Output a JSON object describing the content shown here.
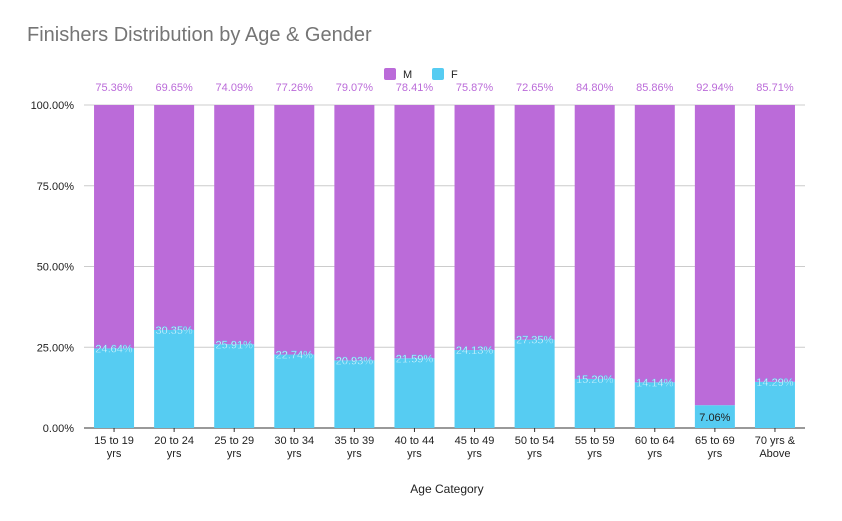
{
  "chart_data": {
    "type": "bar",
    "stacked": true,
    "title": "Finishers Distribution by Age & Gender",
    "xlabel": "Age Category",
    "ylabel": "",
    "ylim": [
      0,
      100
    ],
    "yticks": [
      "0.00%",
      "25.00%",
      "50.00%",
      "75.00%",
      "100.00%"
    ],
    "grid": true,
    "legend_position": "top",
    "categories": [
      [
        "15 to 19",
        "yrs"
      ],
      [
        "20 to 24",
        "yrs"
      ],
      [
        "25 to 29",
        "yrs"
      ],
      [
        "30 to 34",
        "yrs"
      ],
      [
        "35 to 39",
        "yrs"
      ],
      [
        "40 to 44",
        "yrs"
      ],
      [
        "45 to 49",
        "yrs"
      ],
      [
        "50 to 54",
        "yrs"
      ],
      [
        "55 to 59",
        "yrs"
      ],
      [
        "60 to 64",
        "yrs"
      ],
      [
        "65 to 69",
        "yrs"
      ],
      [
        "70 yrs &",
        "Above"
      ]
    ],
    "series": [
      {
        "name": "F",
        "color": "#56ccf2",
        "values": [
          24.64,
          30.35,
          25.91,
          22.74,
          20.93,
          21.59,
          24.13,
          27.35,
          15.2,
          14.14,
          7.06,
          14.29
        ],
        "labels": [
          "24.64%",
          "30.35%",
          "25.91%",
          "22.74%",
          "20.93%",
          "21.59%",
          "24.13%",
          "27.35%",
          "15.20%",
          "14.14%",
          "7.06%",
          "14.29%"
        ]
      },
      {
        "name": "M",
        "color": "#bb6bd9",
        "values": [
          75.36,
          69.65,
          74.09,
          77.26,
          79.07,
          78.41,
          75.87,
          72.65,
          84.8,
          85.86,
          92.94,
          85.71
        ],
        "labels": [
          "75.36%",
          "69.65%",
          "74.09%",
          "77.26%",
          "79.07%",
          "78.41%",
          "75.87%",
          "72.65%",
          "84.80%",
          "85.86%",
          "92.94%",
          "85.71%"
        ]
      }
    ],
    "legend": [
      "M",
      "F"
    ]
  }
}
